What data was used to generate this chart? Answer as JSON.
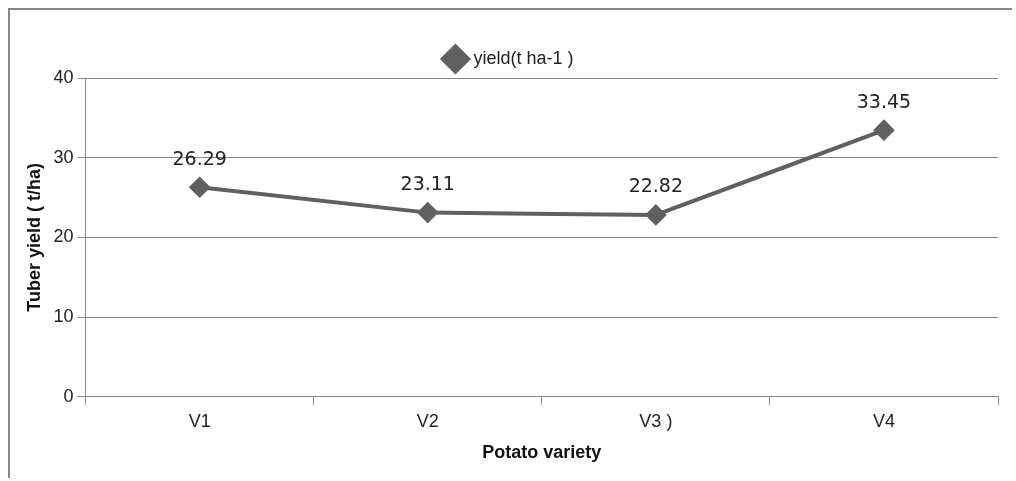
{
  "chart_data": {
    "type": "line",
    "xlabel": "Potato variety",
    "ylabel": "Tuber yield ( t/ha)",
    "categories": [
      "V1",
      "V2",
      "V3 )",
      "V4"
    ],
    "series": [
      {
        "name": "yield(t ha-1 )",
        "color": "#606060",
        "values": [
          26.29,
          23.11,
          22.82,
          33.45
        ]
      }
    ],
    "ylim": [
      0,
      40
    ],
    "yticks": [
      0,
      10,
      20,
      30,
      40
    ],
    "grid": "y",
    "legend": "top",
    "marker": "diamond",
    "line_style": "solid",
    "data_labels": true
  }
}
